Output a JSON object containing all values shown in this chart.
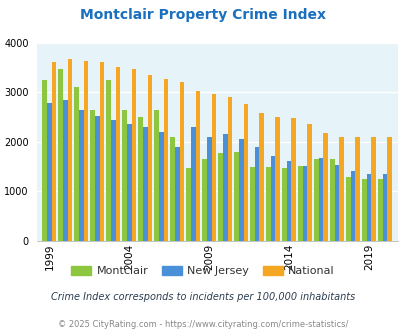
{
  "title": "Montclair Property Crime Index",
  "years": [
    1999,
    2000,
    2001,
    2002,
    2003,
    2004,
    2005,
    2006,
    2007,
    2008,
    2009,
    2010,
    2011,
    2012,
    2013,
    2014,
    2015,
    2016,
    2017,
    2018,
    2019,
    2020
  ],
  "montclair": [
    3250,
    3470,
    3100,
    2650,
    3250,
    2650,
    2500,
    2650,
    2100,
    1480,
    1650,
    1780,
    1800,
    1500,
    1500,
    1470,
    1520,
    1650,
    1650,
    1290,
    1250,
    1250
  ],
  "new_jersey": [
    2780,
    2840,
    2640,
    2530,
    2450,
    2360,
    2300,
    2200,
    1900,
    2300,
    2090,
    2160,
    2060,
    1890,
    1710,
    1610,
    1520,
    1670,
    1540,
    1420,
    1360,
    1350
  ],
  "national": [
    3620,
    3670,
    3630,
    3620,
    3520,
    3470,
    3360,
    3280,
    3220,
    3020,
    2960,
    2900,
    2760,
    2580,
    2510,
    2490,
    2360,
    2180,
    2100,
    2100,
    2100,
    2100
  ],
  "montclair_color": "#8dc63f",
  "nj_color": "#4a90d9",
  "national_color": "#f5a623",
  "bg_color": "#e6f3f8",
  "ylim": [
    0,
    4000
  ],
  "yticks": [
    0,
    1000,
    2000,
    3000,
    4000
  ],
  "tick_years": [
    1999,
    2004,
    2009,
    2014,
    2019
  ],
  "subtitle": "Crime Index corresponds to incidents per 100,000 inhabitants",
  "footer": "© 2025 CityRating.com - https://www.cityrating.com/crime-statistics/",
  "title_color": "#1b6fbf",
  "subtitle_color": "#2c3e50",
  "footer_color": "#888888",
  "legend_labels": [
    "Montclair",
    "New Jersey",
    "National"
  ],
  "legend_text_color": "#333333"
}
